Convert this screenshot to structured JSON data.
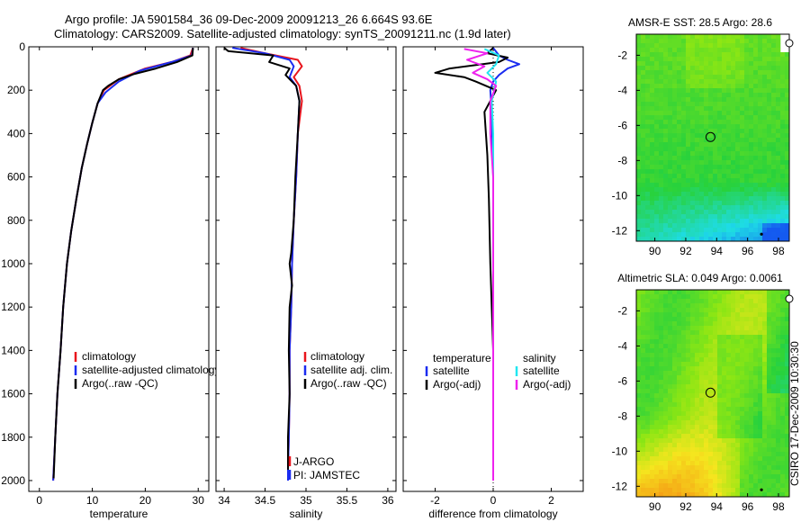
{
  "title": {
    "line1": "Argo profile: JA 5901584_36 09-Dec-2009 20091213_26 6.664S 93.6E",
    "line2": "Climatology: CARS2009. Satellite-adjusted climatology: synTS_20091211.nc (1.9d later)"
  },
  "side_label": "CSIRO 17-Dec-2009 10:30:30",
  "colors": {
    "red": "#e8141c",
    "blue": "#1a2cf0",
    "black": "#000000",
    "cyan": "#22e6f0",
    "magenta": "#ee22ee"
  },
  "chart_data": [
    {
      "id": "temperature",
      "type": "line",
      "xlabel": "temperature",
      "xlim": [
        -2,
        32
      ],
      "ylim": [
        2050,
        0
      ],
      "xticks": [
        0,
        10,
        20,
        30
      ],
      "xtick_labels": [
        "0",
        "10",
        "20",
        "30"
      ],
      "yticks": [
        0,
        200,
        400,
        600,
        800,
        1000,
        1200,
        1400,
        1600,
        1800,
        2000
      ],
      "ytick_labels": [
        "0",
        "200",
        "400",
        "600",
        "800",
        "1000",
        "1200",
        "1400",
        "1600",
        "1800",
        "2000"
      ],
      "legend": [
        "climatology",
        "satellite-adjusted climatology",
        "Argo(..raw -QC)"
      ],
      "series": [
        {
          "name": "climatology",
          "color": "red",
          "x": [
            29,
            28.5,
            25,
            20,
            15,
            12.2,
            11,
            10,
            9,
            8,
            7,
            6,
            5.2,
            4.5,
            4,
            3.4,
            3,
            2.6
          ],
          "y": [
            5,
            40,
            70,
            100,
            150,
            200,
            260,
            350,
            450,
            560,
            700,
            850,
            1000,
            1200,
            1400,
            1600,
            1800,
            2000
          ]
        },
        {
          "name": "satellite-adjusted climatology",
          "color": "blue",
          "x": [
            29,
            28.8,
            25,
            19,
            15,
            12.5,
            11,
            10,
            9,
            8,
            7,
            6,
            5.2,
            4.5,
            4,
            3.4,
            3,
            2.6
          ],
          "y": [
            5,
            40,
            70,
            110,
            160,
            210,
            260,
            350,
            450,
            560,
            700,
            850,
            1000,
            1200,
            1400,
            1600,
            1800,
            2000
          ]
        },
        {
          "name": "Argo(..raw -QC)",
          "color": "black",
          "x": [
            29,
            28.9,
            26,
            22,
            18,
            15,
            13,
            12,
            11,
            10,
            9,
            8,
            7,
            6,
            5.2,
            4.5,
            4,
            3.4,
            3,
            2.7
          ],
          "y": [
            5,
            40,
            70,
            100,
            125,
            150,
            180,
            200,
            260,
            350,
            450,
            560,
            700,
            850,
            1000,
            1200,
            1400,
            1600,
            1800,
            1990
          ]
        }
      ]
    },
    {
      "id": "salinity",
      "type": "line",
      "xlabel": "salinity",
      "xlim": [
        33.9,
        36.1
      ],
      "ylim": [
        2050,
        0
      ],
      "xticks": [
        34,
        34.5,
        35,
        35.5,
        36
      ],
      "xtick_labels": [
        "34",
        "34.5",
        "35",
        "35.5",
        "36"
      ],
      "legend": [
        "climatology",
        "satellite adj. clim.",
        "Argo(..raw -QC)"
      ],
      "annotations": [
        "J-ARGO",
        "PI: JAMSTEC"
      ],
      "series": [
        {
          "name": "climatology",
          "color": "red",
          "x": [
            34.2,
            34.5,
            34.9,
            34.95,
            34.85,
            34.92,
            34.95,
            34.9,
            34.88,
            34.85,
            34.83,
            34.82,
            34.8,
            34.8,
            34.79,
            34.78,
            34.78
          ],
          "y": [
            5,
            30,
            60,
            90,
            140,
            180,
            250,
            400,
            600,
            800,
            1000,
            1200,
            1400,
            1600,
            1800,
            1950,
            2000
          ]
        },
        {
          "name": "satellite adj. clim.",
          "color": "blue",
          "x": [
            34.1,
            34.5,
            34.8,
            34.85,
            34.8,
            34.88,
            34.92,
            34.9,
            34.88,
            34.85,
            34.83,
            34.82,
            34.8,
            34.8,
            34.79,
            34.78,
            34.78
          ],
          "y": [
            5,
            30,
            60,
            90,
            140,
            180,
            250,
            400,
            600,
            800,
            1000,
            1200,
            1400,
            1600,
            1800,
            1950,
            2000
          ]
        },
        {
          "name": "Argo(..raw -QC)",
          "color": "black",
          "x": [
            34.0,
            34.05,
            34.6,
            34.55,
            34.8,
            34.75,
            34.88,
            34.92,
            34.9,
            34.87,
            34.85,
            34.82,
            34.8,
            34.83,
            34.8,
            34.79,
            34.8,
            34.78,
            34.78
          ],
          "y": [
            5,
            20,
            40,
            70,
            100,
            130,
            180,
            250,
            400,
            600,
            800,
            950,
            1000,
            1100,
            1200,
            1400,
            1600,
            1800,
            1950
          ]
        }
      ]
    },
    {
      "id": "difference",
      "type": "line",
      "xlabel": "difference from climatology",
      "xlim": [
        -3.1,
        3.1
      ],
      "ylim": [
        2050,
        0
      ],
      "xticks": [
        -2,
        0,
        2
      ],
      "xtick_labels": [
        "-2",
        "0",
        "2"
      ],
      "legend_left_title": "temperature",
      "legend_left": [
        "satellite",
        "Argo(-adj)"
      ],
      "legend_right_title": "salinity",
      "legend_right": [
        "satellite",
        "Argo(-adj)"
      ],
      "series": [
        {
          "name": "temperature satellite",
          "color": "blue",
          "x": [
            0,
            0.2,
            0.5,
            0.9,
            0.5,
            0.2,
            0,
            -0.1,
            -0.05,
            0,
            0,
            0
          ],
          "y": [
            5,
            40,
            60,
            80,
            100,
            130,
            160,
            200,
            300,
            600,
            1200,
            2000
          ]
        },
        {
          "name": "temperature Argo(-adj)",
          "color": "black",
          "x": [
            0,
            -0.2,
            0.5,
            0.2,
            -1.5,
            -2.0,
            -1.0,
            -0.6,
            0.1,
            -0.3,
            -0.2,
            -0.15,
            -0.1,
            0,
            0,
            0
          ],
          "y": [
            5,
            30,
            50,
            70,
            100,
            120,
            140,
            160,
            200,
            300,
            500,
            700,
            1000,
            1400,
            1800,
            2000
          ]
        },
        {
          "name": "salinity satellite",
          "color": "cyan",
          "x": [
            -0.3,
            0.2,
            0.1,
            -0.2,
            0.1,
            -0.05,
            0,
            0,
            0,
            0
          ],
          "y": [
            10,
            40,
            80,
            120,
            160,
            250,
            400,
            800,
            1400,
            2000
          ]
        },
        {
          "name": "salinity Argo(-adj)",
          "color": "magenta",
          "x": [
            -1.0,
            -0.2,
            -0.9,
            -0.3,
            -0.7,
            -0.2,
            0.1,
            -0.1,
            -0.1,
            0,
            0,
            0,
            0
          ],
          "y": [
            10,
            30,
            60,
            90,
            120,
            150,
            180,
            250,
            400,
            600,
            1000,
            1600,
            2000
          ]
        }
      ]
    },
    {
      "id": "sst_map",
      "type": "heatmap",
      "title": "AMSR-E SST: 28.5 Argo: 28.6",
      "xlim": [
        88.8,
        98.7
      ],
      "ylim": [
        -12.6,
        -0.8
      ],
      "xticks": [
        90,
        92,
        94,
        96,
        98
      ],
      "xtick_labels": [
        "90",
        "92",
        "94",
        "96",
        "98"
      ],
      "yticks": [
        -2,
        -4,
        -6,
        -8,
        -10,
        -12
      ],
      "ytick_labels": [
        "-2",
        "-4",
        "-6",
        "-8",
        "-10",
        "-12"
      ],
      "marker": {
        "lon": 93.6,
        "lat": -6.664
      }
    },
    {
      "id": "sla_map",
      "type": "heatmap",
      "title": "Altimetric SLA: 0.049 Argo: 0.0061",
      "xlim": [
        88.8,
        98.7
      ],
      "ylim": [
        -12.6,
        -0.8
      ],
      "xticks": [
        90,
        92,
        94,
        96,
        98
      ],
      "xtick_labels": [
        "90",
        "92",
        "94",
        "96",
        "98"
      ],
      "yticks": [
        -2,
        -4,
        -6,
        -8,
        -10,
        -12
      ],
      "ytick_labels": [
        "-2",
        "-4",
        "-6",
        "-8",
        "-10",
        "-12"
      ],
      "marker": {
        "lon": 93.6,
        "lat": -6.664
      }
    }
  ]
}
